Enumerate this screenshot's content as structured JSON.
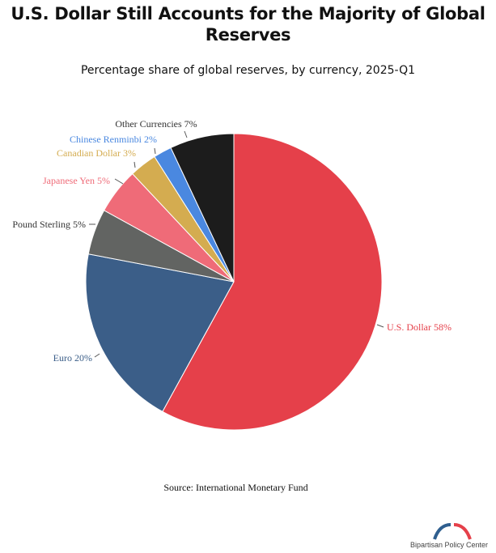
{
  "chart_data": {
    "type": "pie",
    "title": "U.S. Dollar Still Accounts for the Majority of Global Reserves",
    "subtitle": "Percentage share of global reserves, by currency, 2025-Q1",
    "source": "Source: International Monetary Fund",
    "slices": [
      {
        "label": "U.S. Dollar 58%",
        "name": "U.S. Dollar",
        "value": 58,
        "color": "#e5404a"
      },
      {
        "label": "Euro 20%",
        "name": "Euro",
        "value": 20,
        "color": "#3b5e88"
      },
      {
        "label": "Pound Sterling 5%",
        "name": "Pound Sterling",
        "value": 5,
        "color": "#626462"
      },
      {
        "label": "Japanese Yen 5%",
        "name": "Japanese Yen",
        "value": 5,
        "color": "#ef6b78"
      },
      {
        "label": "Canadian Dollar 3%",
        "name": "Canadian Dollar",
        "value": 3,
        "color": "#d4ac50"
      },
      {
        "label": "Chinese Renminbi 2%",
        "name": "Chinese Renminbi",
        "value": 2,
        "color": "#4a88e0"
      },
      {
        "label": "Other Currencies 7%",
        "name": "Other Currencies",
        "value": 7,
        "color": "#1c1c1c"
      }
    ],
    "start": "top",
    "direction": "clockwise"
  },
  "logo": {
    "text": "Bipartisan Policy Center",
    "colors": [
      "#2f5f8f",
      "#e5404a"
    ]
  }
}
